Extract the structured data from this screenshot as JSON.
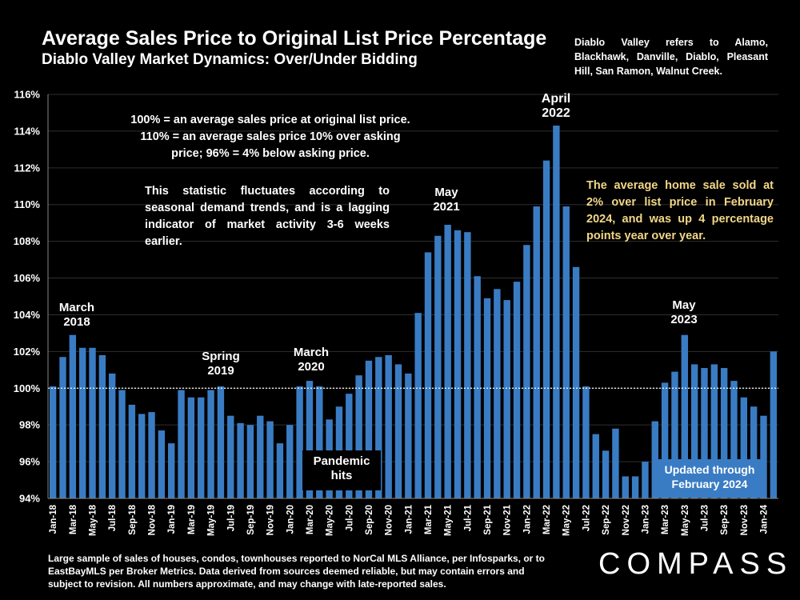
{
  "header": {
    "title": "Average Sales Price to Original List Price Percentage",
    "subtitle": "Diablo Valley Market Dynamics: Over/Under Bidding",
    "region_note": "Diablo Valley refers to Alamo, Blackhawk, Danville, Diablo, Pleasant Hill, San Ramon, Walnut Creek."
  },
  "notes": {
    "definition": "100% = an average sales price at original list price. 110% = an average sales price 10% over asking price; 96% = 4% below asking price.",
    "fluctuation": "This statistic fluctuates according to seasonal demand trends, and is a lagging indicator of market activity 3-6 weeks earlier.",
    "highlight": "The average home sale sold at 2% over list price in February 2024, and was up 4 percentage points year over year."
  },
  "annotations": {
    "march_2018_line1": "March",
    "march_2018_line2": "2018",
    "spring_2019_line1": "Spring",
    "spring_2019_line2": "2019",
    "march_2020_line1": "March",
    "march_2020_line2": "2020",
    "may_2021_line1": "May",
    "may_2021_line2": "2021",
    "april_2022_line1": "April",
    "april_2022_line2": "2022",
    "may_2023_line1": "May",
    "may_2023_line2": "2023",
    "pandemic_line1": "Pandemic",
    "pandemic_line2": "hits",
    "updated_line1": "Updated through",
    "updated_line2": "February 2024"
  },
  "footer": {
    "disclaimer": "Large sample of sales of houses, condos, townhouses reported to NorCal MLS Alliance, per Infosparks, or to EastBayMLS per Broker Metrics. Data derived from sources deemed reliable, but may contain errors and subject to revision. All numbers approximate, and may change with late-reported sales.",
    "logo": "COMPASS"
  },
  "colors": {
    "bar": "#3a7cc3",
    "highlight_text": "#f2d788",
    "updated_box": "#3a7cc3",
    "background": "#000000"
  },
  "chart_data": {
    "type": "bar",
    "title": "Average Sales Price to Original List Price Percentage",
    "xlabel": "",
    "ylabel": "",
    "ylim": [
      94,
      116
    ],
    "yticks": [
      94,
      96,
      98,
      100,
      102,
      104,
      106,
      108,
      110,
      112,
      114,
      116
    ],
    "ytick_labels": [
      "94%",
      "96%",
      "98%",
      "100%",
      "102%",
      "104%",
      "106%",
      "108%",
      "110%",
      "112%",
      "114%",
      "116%"
    ],
    "reference_line": 100,
    "grid": true,
    "categories": [
      "Jan-18",
      "Feb-18",
      "Mar-18",
      "Apr-18",
      "May-18",
      "Jun-18",
      "Jul-18",
      "Aug-18",
      "Sep-18",
      "Oct-18",
      "Nov-18",
      "Dec-18",
      "Jan-19",
      "Feb-19",
      "Mar-19",
      "Apr-19",
      "May-19",
      "Jun-19",
      "Jul-19",
      "Aug-19",
      "Sep-19",
      "Oct-19",
      "Nov-19",
      "Dec-19",
      "Jan-20",
      "Feb-20",
      "Mar-20",
      "Apr-20",
      "May-20",
      "Jun-20",
      "Jul-20",
      "Aug-20",
      "Sep-20",
      "Oct-20",
      "Nov-20",
      "Dec-20",
      "Jan-21",
      "Feb-21",
      "Mar-21",
      "Apr-21",
      "May-21",
      "Jun-21",
      "Jul-21",
      "Aug-21",
      "Sep-21",
      "Oct-21",
      "Nov-21",
      "Dec-21",
      "Jan-22",
      "Feb-22",
      "Mar-22",
      "Apr-22",
      "May-22",
      "Jun-22",
      "Jul-22",
      "Aug-22",
      "Sep-22",
      "Oct-22",
      "Nov-22",
      "Dec-22",
      "Jan-23",
      "Feb-23",
      "Mar-23",
      "Apr-23",
      "May-23",
      "Jun-23",
      "Jul-23",
      "Aug-23",
      "Sep-23",
      "Oct-23",
      "Nov-23",
      "Dec-23",
      "Jan-24",
      "Feb-24"
    ],
    "xtick_labels": [
      "Jan-18",
      "Mar-18",
      "May-18",
      "Jul-18",
      "Sep-18",
      "Nov-18",
      "Jan-19",
      "Mar-19",
      "May-19",
      "Jul-19",
      "Sep-19",
      "Nov-19",
      "Jan-20",
      "Mar-20",
      "May-20",
      "Jul-20",
      "Sep-20",
      "Nov-20",
      "Jan-21",
      "Mar-21",
      "May-21",
      "Jul-21",
      "Sep-21",
      "Nov-21",
      "Jan-22",
      "Mar-22",
      "May-22",
      "Jul-22",
      "Sep-22",
      "Nov-22",
      "Jan-23",
      "Mar-23",
      "May-23",
      "Jul-23",
      "Sep-23",
      "Nov-23",
      "Jan-24"
    ],
    "values": [
      100.1,
      101.7,
      102.9,
      102.2,
      102.2,
      101.8,
      100.8,
      99.9,
      99.1,
      98.6,
      98.7,
      97.7,
      97.0,
      99.9,
      99.5,
      99.5,
      99.9,
      100.1,
      98.5,
      98.1,
      98.0,
      98.5,
      98.2,
      97.0,
      98.0,
      100.1,
      100.4,
      100.1,
      98.3,
      99.0,
      99.7,
      100.7,
      101.5,
      101.7,
      101.8,
      101.3,
      100.8,
      104.1,
      107.4,
      108.3,
      108.9,
      108.6,
      108.5,
      106.1,
      104.9,
      105.4,
      104.8,
      105.8,
      107.8,
      109.9,
      112.4,
      114.3,
      109.9,
      106.6,
      100.1,
      97.5,
      96.6,
      97.8,
      95.2,
      95.2,
      96.0,
      98.2,
      100.3,
      100.9,
      102.9,
      101.3,
      101.1,
      101.3,
      101.1,
      100.4,
      99.5,
      99.0,
      98.5,
      102.0
    ]
  }
}
